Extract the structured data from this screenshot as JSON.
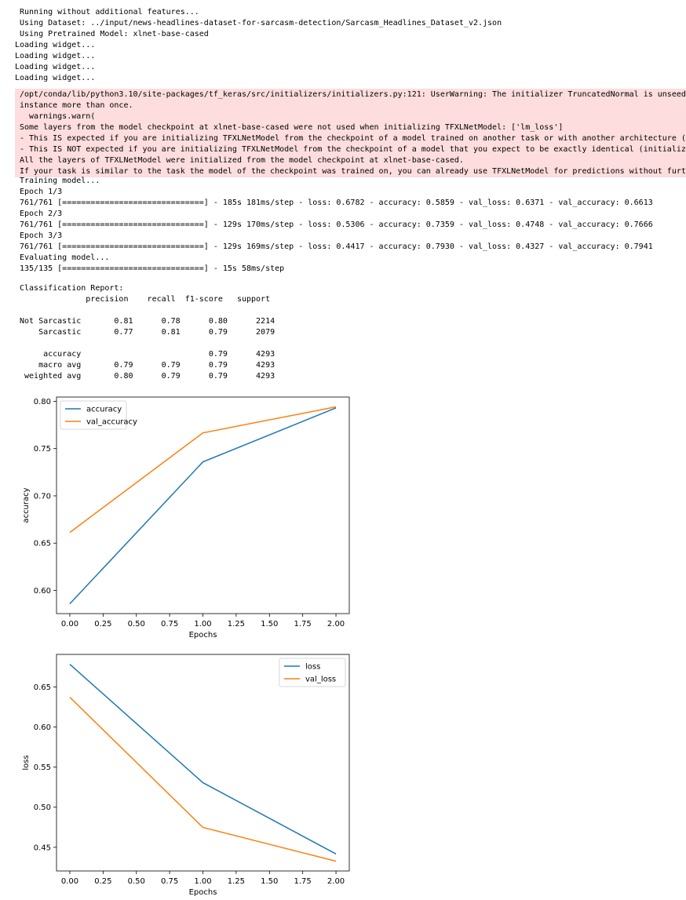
{
  "stdout1": [
    "Running without additional features...",
    "Using Dataset: ../input/news-headlines-dataset-for-sarcasm-detection/Sarcasm_Headlines_Dataset_v2.json",
    "Using Pretrained Model: xlnet-base-cased"
  ],
  "widgets": [
    "Loading widget...",
    "Loading widget...",
    "Loading widget...",
    "Loading widget..."
  ],
  "stderr": [
    "/opt/conda/lib/python3.10/site-packages/tf_keras/src/initializers/initializers.py:121: UserWarning: The initializer TruncatedNormal is unseeded and",
    "instance more than once.",
    "  warnings.warn(",
    "Some layers from the model checkpoint at xlnet-base-cased were not used when initializing TFXLNetModel: ['lm_loss']",
    "- This IS expected if you are initializing TFXLNetModel from the checkpoint of a model trained on another task or with another architecture (e.g. i",
    "- This IS NOT expected if you are initializing TFXLNetModel from the checkpoint of a model that you expect to be exactly identical (initializing a",
    "All the layers of TFXLNetModel were initialized from the model checkpoint at xlnet-base-cased.",
    "If your task is similar to the task the model of the checkpoint was trained on, you can already use TFXLNetModel for predictions without further tr"
  ],
  "stdout2": [
    "Training model...",
    "Epoch 1/3",
    "761/761 [==============================] - 185s 181ms/step - loss: 0.6782 - accuracy: 0.5859 - val_loss: 0.6371 - val_accuracy: 0.6613",
    "Epoch 2/3",
    "761/761 [==============================] - 129s 170ms/step - loss: 0.5306 - accuracy: 0.7359 - val_loss: 0.4748 - val_accuracy: 0.7666",
    "Epoch 3/3",
    "761/761 [==============================] - 129s 169ms/step - loss: 0.4417 - accuracy: 0.7930 - val_loss: 0.4327 - val_accuracy: 0.7941",
    "Evaluating model...",
    "135/135 [==============================] - 15s 58ms/step"
  ],
  "report": [
    "Classification Report:",
    "              precision    recall  f1-score   support",
    "",
    "Not Sarcastic       0.81      0.78      0.80      2214",
    "    Sarcastic       0.77      0.81      0.79      2079",
    "",
    "     accuracy                           0.79      4293",
    "    macro avg       0.79      0.79      0.79      4293",
    " weighted avg       0.80      0.79      0.79      4293"
  ],
  "chart_data": [
    {
      "type": "line",
      "x": [
        0,
        1,
        2
      ],
      "series": [
        {
          "name": "accuracy",
          "values": [
            0.5859,
            0.7359,
            0.793
          ],
          "color": "#1f77b4"
        },
        {
          "name": "val_accuracy",
          "values": [
            0.6613,
            0.7666,
            0.7941
          ],
          "color": "#ff7f0e"
        }
      ],
      "xlabel": "Epochs",
      "ylabel": "accuracy",
      "xticks": [
        "0.00",
        "0.25",
        "0.50",
        "0.75",
        "1.00",
        "1.25",
        "1.50",
        "1.75",
        "2.00"
      ],
      "yticks": [
        "0.60",
        "0.65",
        "0.70",
        "0.75",
        "0.80"
      ],
      "xlim": [
        -0.1,
        2.1
      ],
      "ylim": [
        0.5755,
        0.8045
      ],
      "legend": "upper-left"
    },
    {
      "type": "line",
      "x": [
        0,
        1,
        2
      ],
      "series": [
        {
          "name": "loss",
          "values": [
            0.6782,
            0.5306,
            0.4417
          ],
          "color": "#1f77b4"
        },
        {
          "name": "val_loss",
          "values": [
            0.6371,
            0.4748,
            0.4327
          ],
          "color": "#ff7f0e"
        }
      ],
      "xlabel": "Epochs",
      "ylabel": "loss",
      "xticks": [
        "0.00",
        "0.25",
        "0.50",
        "0.75",
        "1.00",
        "1.25",
        "1.50",
        "1.75",
        "2.00"
      ],
      "yticks": [
        "0.45",
        "0.50",
        "0.55",
        "0.60",
        "0.65"
      ],
      "xlim": [
        -0.1,
        2.1
      ],
      "ylim": [
        0.4205,
        0.6905
      ],
      "legend": "upper-right"
    }
  ]
}
